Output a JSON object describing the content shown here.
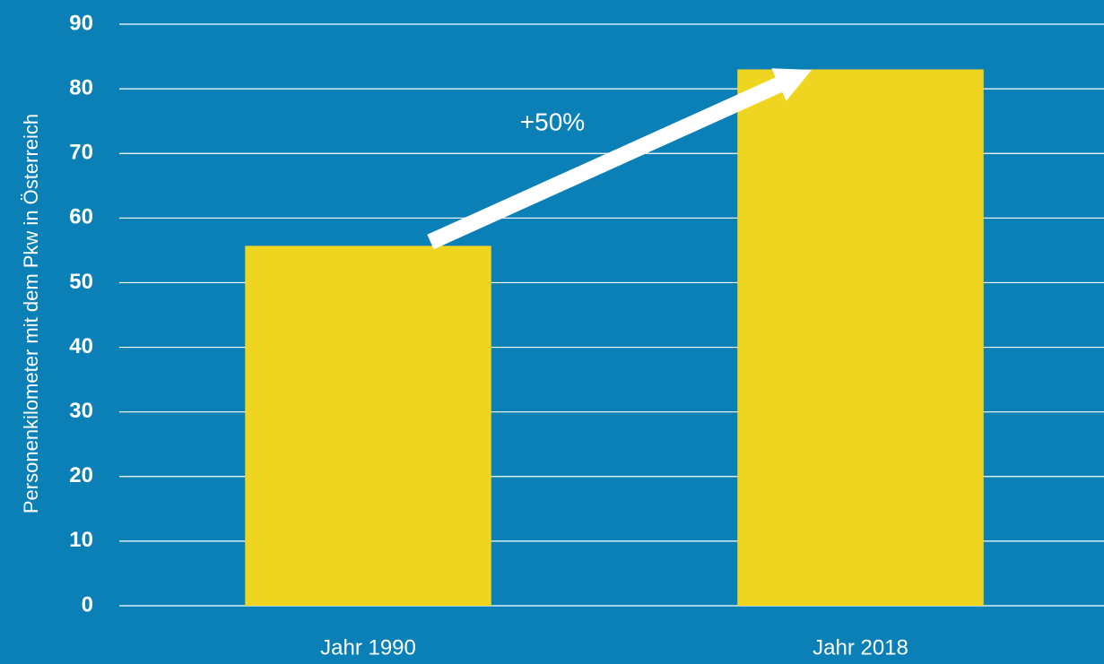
{
  "chart_data": {
    "type": "bar",
    "y_label": "Personenkilometer mit dem Pkw in Österreich",
    "annotation": "+50%",
    "categories": [
      "Jahr 1990",
      "Jahr 2018"
    ],
    "values": [
      55.7,
      83
    ],
    "color": "#f0d520",
    "ylim": [
      0,
      90
    ],
    "yticks": [
      0,
      10,
      20,
      30,
      40,
      50,
      60,
      70,
      80,
      90
    ],
    "grid": true
  }
}
